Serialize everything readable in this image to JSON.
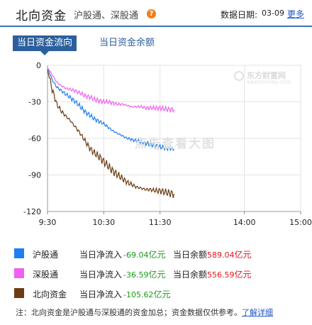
{
  "header": {
    "title": "北向资金",
    "subtitle": "沪股通、深股通",
    "help_icon": "question-icon",
    "date_label": "数据日期:",
    "date_value": "03-09",
    "more_label": "更多"
  },
  "tabs": [
    {
      "label": "当日资金流向",
      "active": true
    },
    {
      "label": "当日资金余额",
      "active": false
    }
  ],
  "watermark": {
    "logo_main": "东方财富网",
    "logo_sub": "eastmoney.com",
    "overlay": "点击查看大图"
  },
  "chart_data": {
    "type": "line",
    "x_ticks": [
      "9:30",
      "10:30",
      "11:30",
      "14:00",
      "15:00"
    ],
    "y_ticks": [
      0,
      -30,
      -60,
      -90,
      -120
    ],
    "ylim": [
      -120,
      0
    ],
    "grid": true,
    "series": [
      {
        "name": "沪股通",
        "color": "#1e7ef0",
        "points": [
          [
            0,
            -2
          ],
          [
            5,
            -12
          ],
          [
            10,
            -18
          ],
          [
            15,
            -21
          ],
          [
            20,
            -24
          ],
          [
            25,
            -27
          ],
          [
            30,
            -30
          ],
          [
            35,
            -34
          ],
          [
            40,
            -38
          ],
          [
            45,
            -41
          ],
          [
            50,
            -44
          ],
          [
            55,
            -46
          ],
          [
            60,
            -48
          ],
          [
            65,
            -51
          ],
          [
            70,
            -54
          ],
          [
            75,
            -56
          ],
          [
            80,
            -58
          ],
          [
            85,
            -60
          ],
          [
            90,
            -61
          ],
          [
            95,
            -62
          ],
          [
            100,
            -63
          ],
          [
            105,
            -64
          ],
          [
            110,
            -65
          ],
          [
            115,
            -66
          ],
          [
            120,
            -67
          ],
          [
            125,
            -68
          ],
          [
            130,
            -68
          ],
          [
            135,
            -69
          ]
        ]
      },
      {
        "name": "深股通",
        "color": "#f060f0",
        "points": [
          [
            0,
            -2
          ],
          [
            5,
            -8
          ],
          [
            10,
            -14
          ],
          [
            15,
            -17
          ],
          [
            20,
            -19
          ],
          [
            25,
            -20
          ],
          [
            30,
            -21
          ],
          [
            35,
            -23
          ],
          [
            40,
            -25
          ],
          [
            45,
            -26
          ],
          [
            50,
            -28
          ],
          [
            55,
            -29
          ],
          [
            60,
            -30
          ],
          [
            65,
            -30
          ],
          [
            70,
            -31
          ],
          [
            75,
            -32
          ],
          [
            80,
            -32
          ],
          [
            85,
            -33
          ],
          [
            90,
            -34
          ],
          [
            95,
            -34
          ],
          [
            100,
            -34
          ],
          [
            105,
            -35
          ],
          [
            110,
            -35
          ],
          [
            115,
            -35
          ],
          [
            120,
            -35
          ],
          [
            125,
            -36
          ],
          [
            130,
            -36
          ],
          [
            135,
            -36.5
          ]
        ]
      },
      {
        "name": "北向资金",
        "color": "#6b3c14",
        "points": [
          [
            0,
            -4
          ],
          [
            5,
            -20
          ],
          [
            10,
            -32
          ],
          [
            15,
            -38
          ],
          [
            20,
            -42
          ],
          [
            25,
            -46
          ],
          [
            30,
            -51
          ],
          [
            35,
            -56
          ],
          [
            40,
            -62
          ],
          [
            45,
            -68
          ],
          [
            50,
            -72
          ],
          [
            55,
            -75
          ],
          [
            60,
            -79
          ],
          [
            65,
            -83
          ],
          [
            70,
            -87
          ],
          [
            75,
            -90
          ],
          [
            80,
            -93
          ],
          [
            85,
            -96
          ],
          [
            90,
            -98
          ],
          [
            95,
            -100
          ],
          [
            100,
            -101
          ],
          [
            105,
            -102
          ],
          [
            110,
            -102
          ],
          [
            115,
            -103
          ],
          [
            120,
            -103
          ],
          [
            125,
            -104
          ],
          [
            130,
            -105
          ],
          [
            135,
            -105.6
          ]
        ]
      }
    ]
  },
  "legend": [
    {
      "name": "沪股通",
      "color": "#1e7ef0",
      "inflow_label": "当日净流入",
      "inflow": "-69.04",
      "unit": "亿元",
      "balance_label": "当日余额",
      "balance": "589.04"
    },
    {
      "name": "深股通",
      "color": "#f060f0",
      "inflow_label": "当日净流入",
      "inflow": "-36.59",
      "unit": "亿元",
      "balance_label": "当日余额",
      "balance": "556.59"
    },
    {
      "name": "北向资金",
      "color": "#6b3c14",
      "inflow_label": "当日净流入",
      "inflow": "-105.62",
      "unit": "亿元"
    }
  ],
  "note": {
    "text": "注：北向资金是沪股通与深股通的资金加总；资金数据仅供参考。",
    "link": "了解详细"
  }
}
